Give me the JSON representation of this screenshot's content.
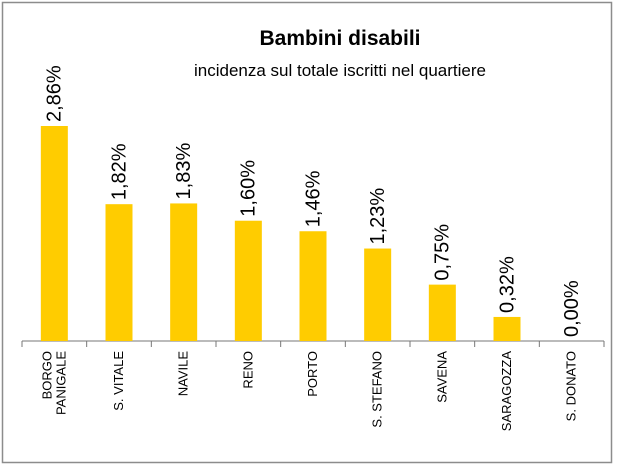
{
  "chart_data": {
    "type": "bar",
    "title": "Bambini disabili",
    "subtitle": "incidenza sul totale iscritti nel quartiere",
    "categories": [
      "BORGO\nPANIGALE",
      "S. VITALE",
      "NAVILE",
      "RENO",
      "PORTO",
      "S. STEFANO",
      "SAVENA",
      "SARAGOZZA",
      "S. DONATO"
    ],
    "values": [
      2.86,
      1.82,
      1.83,
      1.6,
      1.46,
      1.23,
      0.75,
      0.32,
      0.0
    ],
    "value_labels": [
      "2,86%",
      "1,82%",
      "1,83%",
      "1,60%",
      "1,46%",
      "1,23%",
      "0,75%",
      "0,32%",
      "0,00%"
    ],
    "color": "#ffcc00"
  }
}
